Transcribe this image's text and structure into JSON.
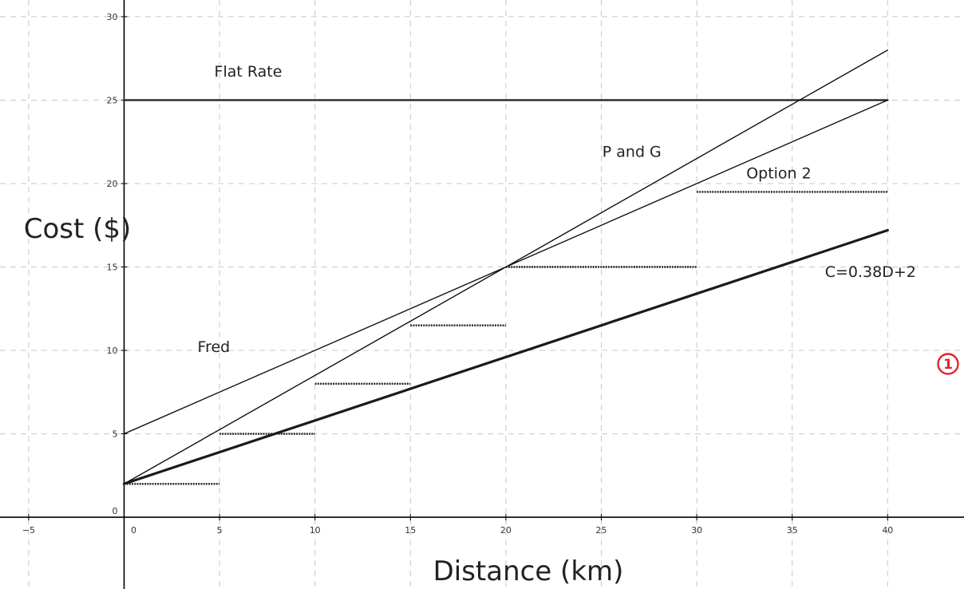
{
  "chart_data": {
    "type": "line",
    "xlabel": "Distance (km)",
    "ylabel": "Cost ($)",
    "xlim": [
      -6.5,
      44
    ],
    "ylim": [
      -4.3,
      31
    ],
    "grid": true,
    "x_ticks": [
      -5,
      0,
      5,
      10,
      15,
      20,
      25,
      30,
      35,
      40
    ],
    "y_ticks": [
      0,
      5,
      10,
      15,
      20,
      25,
      30
    ],
    "series": [
      {
        "name": "Flat Rate",
        "style": "dotted",
        "points": [
          [
            0,
            25
          ],
          [
            40,
            25
          ]
        ]
      },
      {
        "name": "P and G",
        "style": "solid",
        "points": [
          [
            0,
            2
          ],
          [
            40,
            28
          ]
        ]
      },
      {
        "name": "Fred",
        "style": "solid",
        "points": [
          [
            0,
            5
          ],
          [
            40,
            25
          ]
        ]
      },
      {
        "name": "C=0.38D+2",
        "style": "bold",
        "points": [
          [
            0,
            2
          ],
          [
            40,
            17.2
          ]
        ]
      },
      {
        "name": "Option 2",
        "style": "dotted",
        "segments": [
          [
            [
              0,
              2
            ],
            [
              5,
              2
            ]
          ],
          [
            [
              5,
              5
            ],
            [
              10,
              5
            ]
          ],
          [
            [
              10,
              8
            ],
            [
              15,
              8
            ]
          ],
          [
            [
              15,
              11.5
            ],
            [
              20,
              11.5
            ]
          ],
          [
            [
              20,
              15
            ],
            [
              30,
              15
            ]
          ],
          [
            [
              30,
              19.5
            ],
            [
              40,
              19.5
            ]
          ]
        ]
      }
    ],
    "annotations": [
      {
        "text": "Flat Rate",
        "x": 6.5,
        "y": 26.4
      },
      {
        "text": "P and G",
        "x": 26.6,
        "y": 21.6
      },
      {
        "text": "Option 2",
        "x": 34.3,
        "y": 20.3
      },
      {
        "text": "C=0.38D+2",
        "x": 39.1,
        "y": 14.4
      },
      {
        "text": "Fred",
        "x": 4.7,
        "y": 9.9
      }
    ],
    "marker": {
      "label": "1",
      "color": "#e3232c"
    }
  }
}
